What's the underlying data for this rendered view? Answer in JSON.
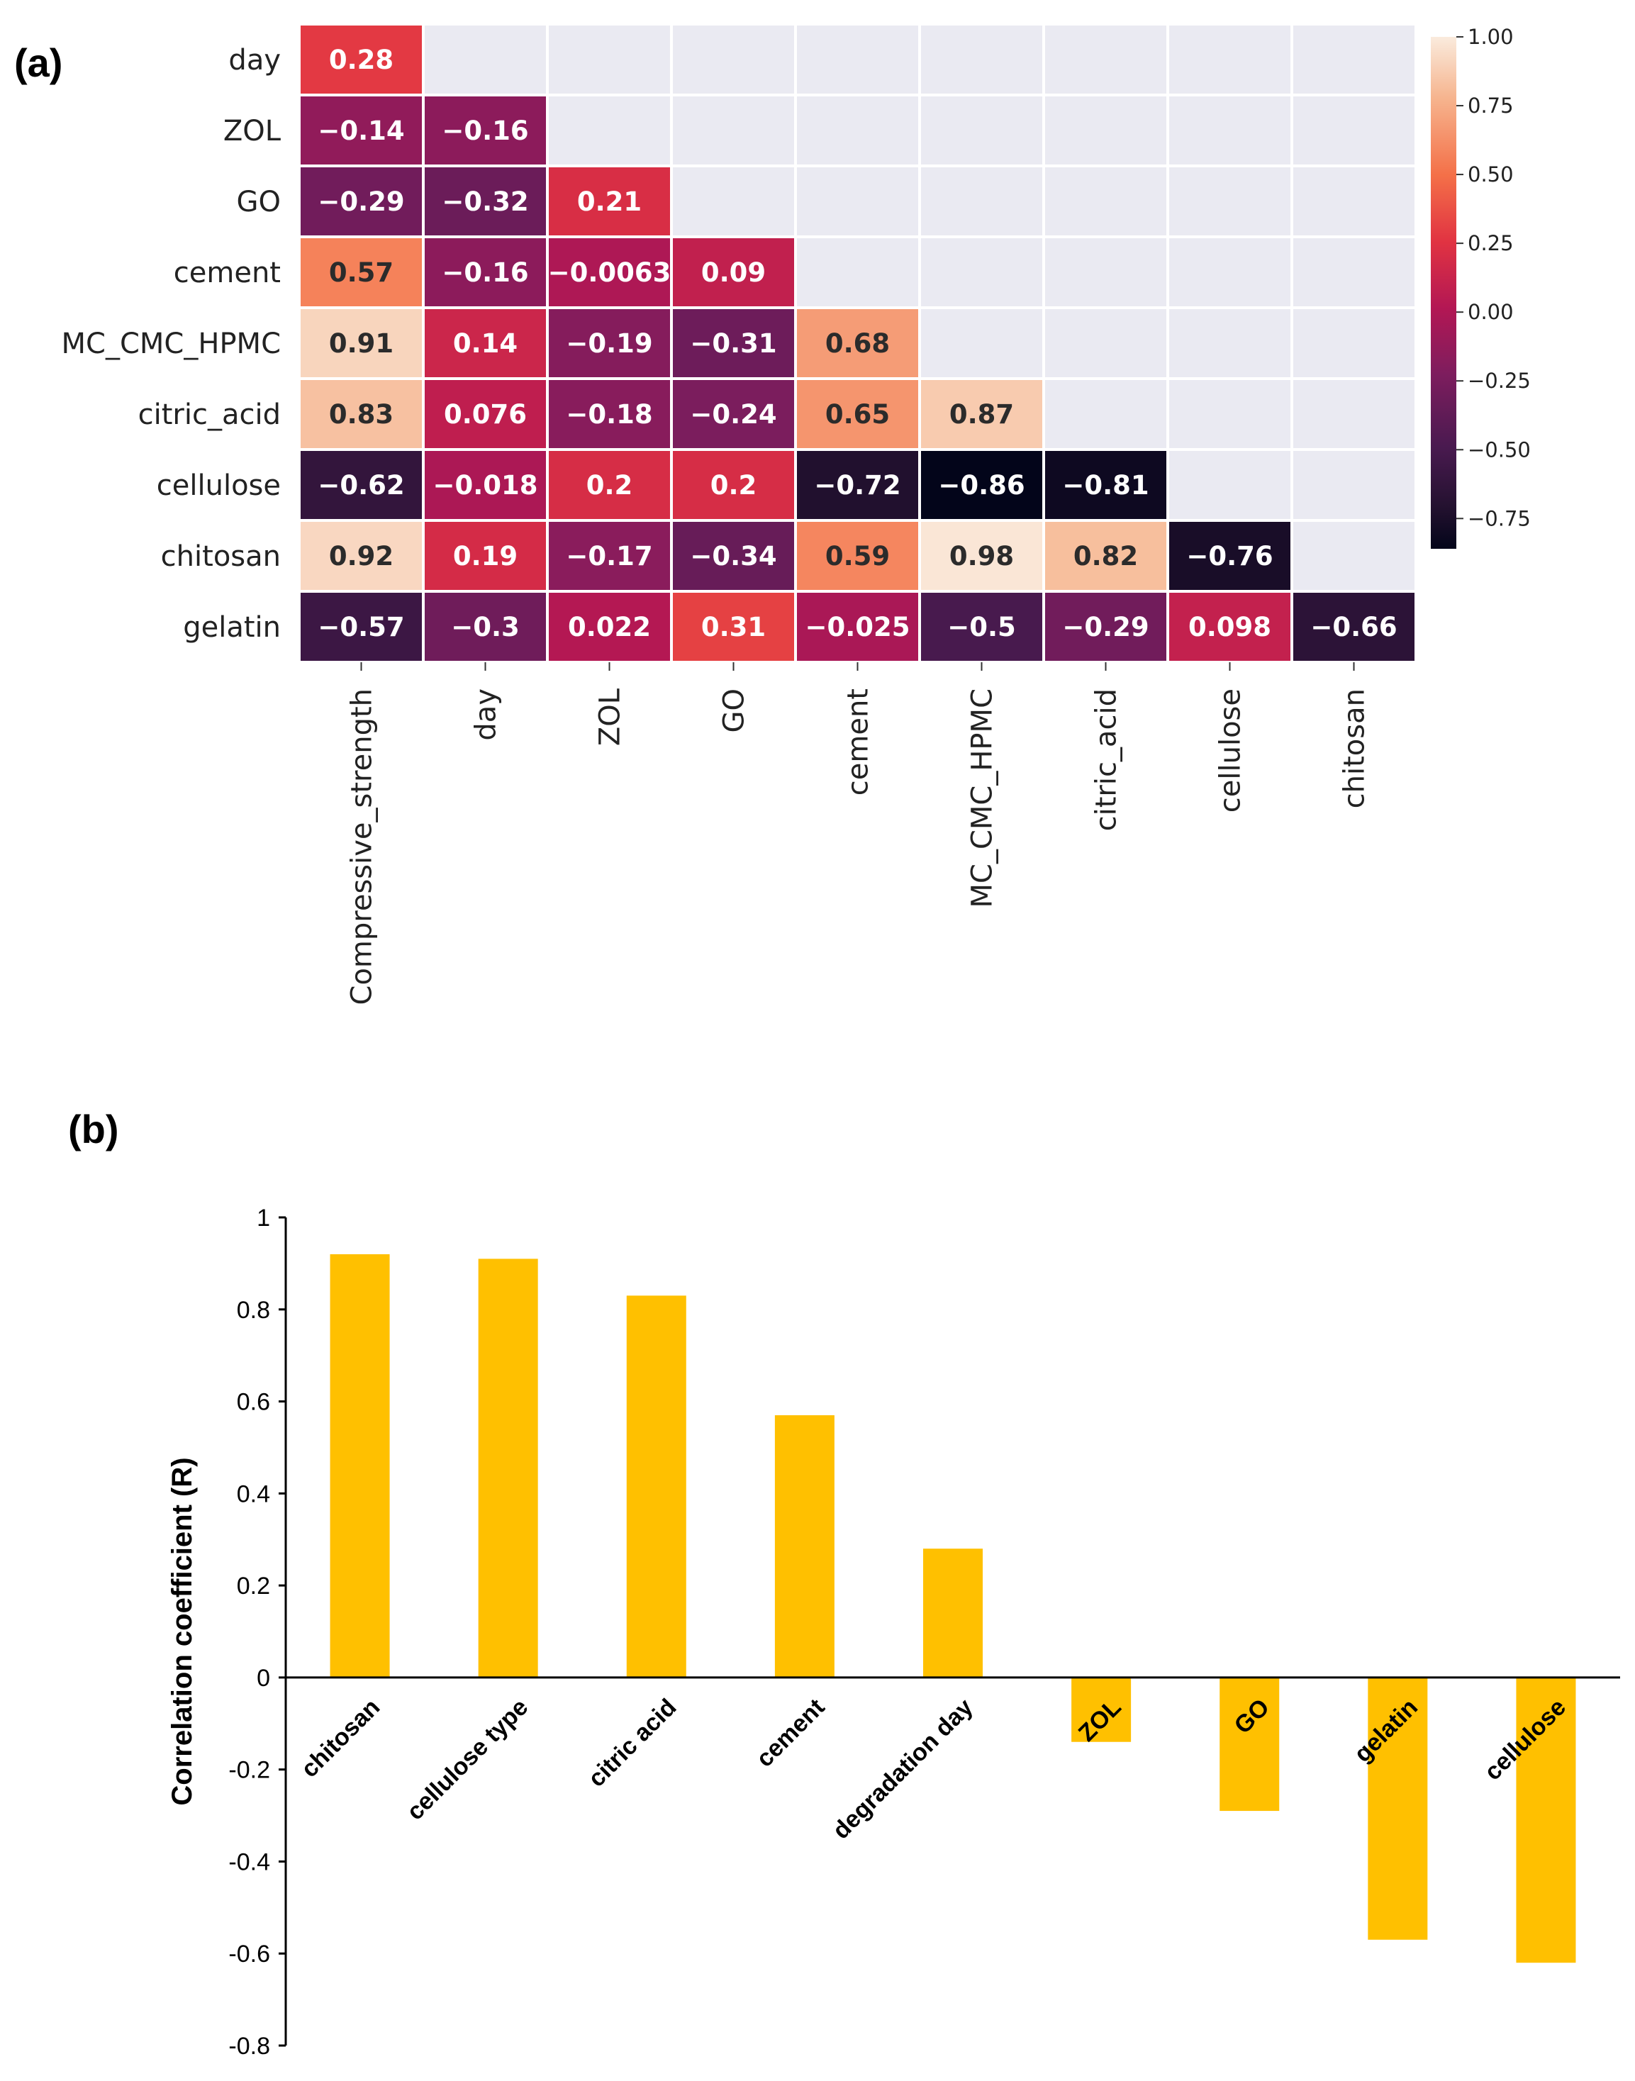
{
  "panels": {
    "a_label": "(a)",
    "b_label": "(b)"
  },
  "chart_data": [
    {
      "type": "heatmap",
      "title": "",
      "rows": [
        "day",
        "ZOL",
        "GO",
        "cement",
        "MC_CMC_HPMC",
        "citric_acid",
        "cellulose",
        "chitosan",
        "gelatin"
      ],
      "columns": [
        "Compressive_strength",
        "day",
        "ZOL",
        "GO",
        "cement",
        "MC_CMC_HPMC",
        "citric_acid",
        "cellulose",
        "chitosan"
      ],
      "values": [
        [
          0.28
        ],
        [
          -0.14,
          -0.16
        ],
        [
          -0.29,
          -0.32,
          0.21
        ],
        [
          0.57,
          -0.16,
          -0.0063,
          0.09
        ],
        [
          0.91,
          0.14,
          -0.19,
          -0.31,
          0.68
        ],
        [
          0.83,
          0.076,
          -0.18,
          -0.24,
          0.65,
          0.87
        ],
        [
          -0.62,
          -0.018,
          0.2,
          0.2,
          -0.72,
          -0.86,
          -0.81
        ],
        [
          0.92,
          0.19,
          -0.17,
          -0.34,
          0.59,
          0.98,
          0.82,
          -0.76
        ],
        [
          -0.57,
          -0.3,
          0.022,
          0.31,
          -0.025,
          -0.5,
          -0.29,
          0.098,
          -0.66
        ]
      ],
      "value_labels": [
        [
          "0.28"
        ],
        [
          "−0.14",
          "−0.16"
        ],
        [
          "−0.29",
          "−0.32",
          "0.21"
        ],
        [
          "0.57",
          "−0.16",
          "−0.0063",
          "0.09"
        ],
        [
          "0.91",
          "0.14",
          "−0.19",
          "−0.31",
          "0.68"
        ],
        [
          "0.83",
          "0.076",
          "−0.18",
          "−0.24",
          "0.65",
          "0.87"
        ],
        [
          "−0.62",
          "−0.018",
          "0.2",
          "0.2",
          "−0.72",
          "−0.86",
          "−0.81"
        ],
        [
          "0.92",
          "0.19",
          "−0.17",
          "−0.34",
          "0.59",
          "0.98",
          "0.82",
          "−0.76"
        ],
        [
          "−0.57",
          "−0.3",
          "0.022",
          "0.31",
          "−0.025",
          "−0.5",
          "−0.29",
          "0.098",
          "−0.66"
        ]
      ],
      "masked_color": "#eaeaf2",
      "colormap": "rocket",
      "colorbar": {
        "vmin": -0.86,
        "vmax": 1.0,
        "ticks": [
          1.0,
          0.75,
          0.5,
          0.25,
          0.0,
          -0.25,
          -0.5,
          -0.75
        ],
        "tick_labels": [
          "1.00",
          "0.75",
          "0.50",
          "0.25",
          "0.00",
          "−0.25",
          "−0.50",
          "−0.75"
        ]
      }
    },
    {
      "type": "bar",
      "title": "",
      "xlabel": "",
      "ylabel": "Correlation coefficient (R)",
      "categories": [
        "chitosan",
        "cellulose type",
        "citric acid",
        "cement",
        "degradation day",
        "ZOL",
        "GO",
        "gelatin",
        "cellulose"
      ],
      "values": [
        0.92,
        0.91,
        0.83,
        0.57,
        0.28,
        -0.14,
        -0.29,
        -0.57,
        -0.62
      ],
      "ylim": [
        -0.8,
        1
      ],
      "yticks": [
        1,
        0.8,
        0.6,
        0.4,
        0.2,
        0,
        -0.2,
        -0.4,
        -0.6,
        -0.8
      ],
      "ytick_labels": [
        "1",
        "0.8",
        "0.6",
        "0.4",
        "0.2",
        "0",
        "-0.2",
        "-0.4",
        "-0.6",
        "-0.8"
      ],
      "bar_color": "#ffc000",
      "grid": false
    }
  ]
}
